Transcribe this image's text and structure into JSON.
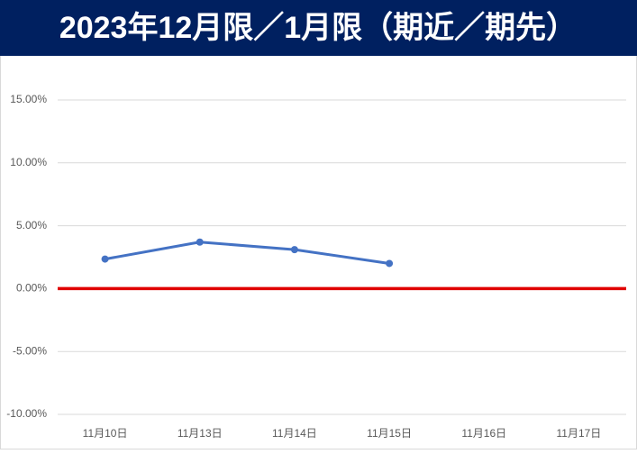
{
  "chart_data": {
    "type": "line",
    "title": "2023年12月限／1月限（期近／期先）",
    "categories": [
      "11月10日",
      "11月13日",
      "11月14日",
      "11月15日",
      "11月16日",
      "11月17日"
    ],
    "values": [
      2.35,
      3.7,
      3.1,
      2.0,
      null,
      null
    ],
    "color": "#4472c4",
    "ylim": [
      -10,
      15
    ],
    "yticks": [
      {
        "value": -10,
        "label": "-10.00%"
      },
      {
        "value": -5,
        "label": "-5.00%"
      },
      {
        "value": 0,
        "label": "0.00%"
      },
      {
        "value": 5,
        "label": "5.00%"
      },
      {
        "value": 10,
        "label": "10.00%"
      },
      {
        "value": 15,
        "label": "15.00%"
      }
    ],
    "grid": true,
    "zero_line_color": "#e00000",
    "title_background": "#002060"
  }
}
